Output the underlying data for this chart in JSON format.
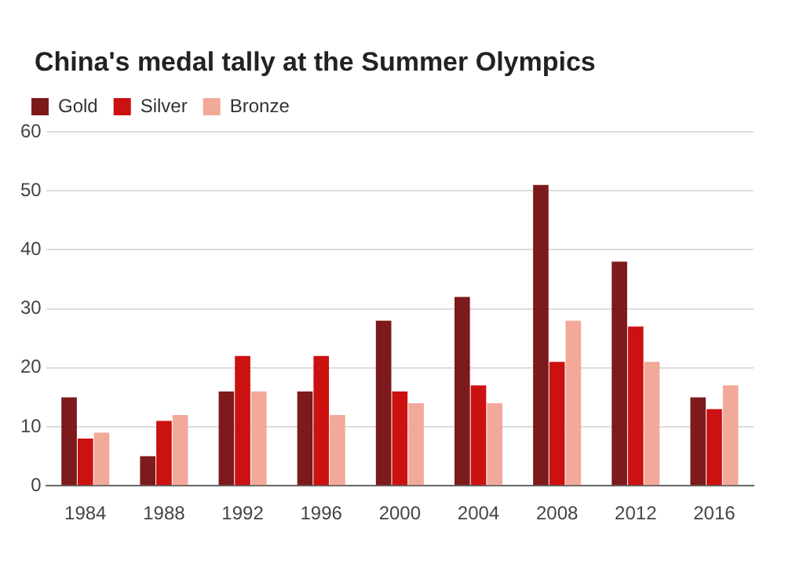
{
  "chart_data": {
    "type": "bar",
    "title": "China's medal tally at the Summer Olympics",
    "categories": [
      "1984",
      "1988",
      "1992",
      "1996",
      "2000",
      "2004",
      "2008",
      "2012",
      "2016"
    ],
    "series": [
      {
        "name": "Gold",
        "color": "#7d1a1c",
        "values": [
          15,
          5,
          16,
          16,
          28,
          32,
          51,
          38,
          15
        ]
      },
      {
        "name": "Silver",
        "color": "#cc1111",
        "values": [
          8,
          11,
          22,
          22,
          16,
          17,
          21,
          27,
          13
        ]
      },
      {
        "name": "Bronze",
        "color": "#f2a99a",
        "values": [
          9,
          12,
          16,
          12,
          14,
          14,
          28,
          21,
          17
        ]
      }
    ],
    "ylim": [
      0,
      60
    ],
    "yticks": [
      0,
      10,
      20,
      30,
      40,
      50,
      60
    ],
    "grid": "y",
    "legend": "top left"
  }
}
